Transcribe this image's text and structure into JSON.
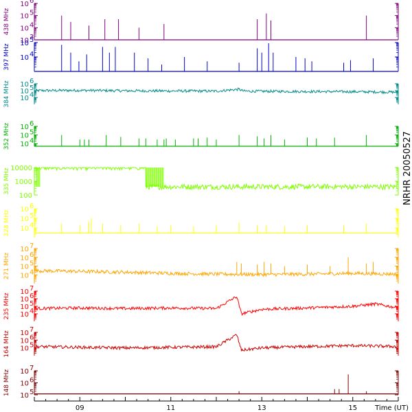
{
  "chart_data": {
    "type": "line",
    "title": "NRHR 20050527",
    "xlabel": "Time (UT)",
    "x_range_hours_ut": [
      8.0,
      16.0
    ],
    "x_ticks": [
      {
        "value": 9,
        "label": "09"
      },
      {
        "value": 11,
        "label": "11"
      },
      {
        "value": 13,
        "label": "13"
      },
      {
        "value": 15,
        "label": "15"
      }
    ],
    "panels": [
      {
        "name": "438 MHz",
        "color": "#800080",
        "log_scale": true,
        "ylim": [
          1000,
          1000000
        ],
        "y_ticks": [
          {
            "value": 1000,
            "label": "10",
            "exp": "3"
          },
          {
            "value": 10000,
            "label": "10",
            "exp": "4"
          },
          {
            "value": 100000,
            "label": "10",
            "exp": "5"
          },
          {
            "value": 1000000,
            "label": "10",
            "exp": "6"
          }
        ],
        "baseline": 1000,
        "spikes": [
          [
            8.6,
            100000
          ],
          [
            8.8,
            30000
          ],
          [
            9.2,
            15000
          ],
          [
            9.55,
            50000
          ],
          [
            9.85,
            50000
          ],
          [
            10.3,
            10000
          ],
          [
            10.85,
            20000
          ],
          [
            12.9,
            50000
          ],
          [
            13.1,
            150000
          ],
          [
            13.2,
            40000
          ],
          [
            15.3,
            100000
          ]
        ]
      },
      {
        "name": "397 MHz",
        "color": "#0000cc",
        "log_scale": true,
        "ylim": [
          1000,
          100000
        ],
        "y_ticks": [
          {
            "value": 10000,
            "label": "10",
            "exp": "4"
          },
          {
            "value": 100000,
            "label": "10",
            "exp": "5"
          }
        ],
        "baseline": 1000,
        "spikes": [
          [
            8.6,
            70000
          ],
          [
            8.8,
            20000
          ],
          [
            8.98,
            5000
          ],
          [
            9.15,
            15000
          ],
          [
            9.5,
            50000
          ],
          [
            9.65,
            20000
          ],
          [
            9.78,
            50000
          ],
          [
            10.2,
            20000
          ],
          [
            10.5,
            8000
          ],
          [
            10.8,
            3000
          ],
          [
            11.3,
            10000
          ],
          [
            11.8,
            5000
          ],
          [
            12.5,
            4000
          ],
          [
            12.9,
            40000
          ],
          [
            13.0,
            20000
          ],
          [
            13.15,
            90000
          ],
          [
            13.25,
            20000
          ],
          [
            13.75,
            10000
          ],
          [
            13.95,
            8000
          ],
          [
            14.1,
            5000
          ],
          [
            14.8,
            4000
          ],
          [
            14.95,
            6000
          ],
          [
            15.45,
            8000
          ]
        ]
      },
      {
        "name": "384 MHz",
        "color": "#008b8b",
        "log_scale": true,
        "ylim": [
          1000,
          1000000
        ],
        "y_ticks": [
          {
            "value": 10000,
            "label": "10",
            "exp": "4"
          },
          {
            "value": 100000,
            "label": "10",
            "exp": "5"
          },
          {
            "value": 1000000,
            "label": "10",
            "exp": "6"
          }
        ],
        "baseline_profile": [
          [
            8.0,
            100000
          ],
          [
            9.0,
            110000
          ],
          [
            10.0,
            95000
          ],
          [
            11.0,
            90000
          ],
          [
            12.0,
            85000
          ],
          [
            12.5,
            160000
          ],
          [
            12.6,
            85000
          ],
          [
            13.0,
            80000
          ],
          [
            14.0,
            75000
          ],
          [
            15.0,
            70000
          ],
          [
            16.0,
            60000
          ]
        ],
        "spikes": [
          [
            12.5,
            200000
          ]
        ]
      },
      {
        "name": "352 MHz",
        "color": "#00b000",
        "log_scale": true,
        "ylim": [
          5000,
          1000000
        ],
        "y_ticks": [
          {
            "value": 10000,
            "label": "10",
            "exp": "4"
          },
          {
            "value": 100000,
            "label": "10",
            "exp": "5"
          },
          {
            "value": 1000000,
            "label": "10",
            "exp": "6"
          }
        ],
        "baseline": 5000,
        "spikes": [
          [
            8.6,
            100000
          ],
          [
            9.0,
            30000
          ],
          [
            9.1,
            30000
          ],
          [
            9.2,
            30000
          ],
          [
            9.58,
            100000
          ],
          [
            9.9,
            60000
          ],
          [
            10.3,
            40000
          ],
          [
            10.45,
            40000
          ],
          [
            10.7,
            30000
          ],
          [
            10.85,
            30000
          ],
          [
            10.9,
            40000
          ],
          [
            11.1,
            30000
          ],
          [
            11.5,
            40000
          ],
          [
            11.6,
            40000
          ],
          [
            11.8,
            50000
          ],
          [
            12.0,
            30000
          ],
          [
            12.5,
            100000
          ],
          [
            12.9,
            70000
          ],
          [
            13.05,
            40000
          ],
          [
            13.2,
            100000
          ],
          [
            13.5,
            30000
          ],
          [
            14.0,
            50000
          ],
          [
            14.2,
            40000
          ],
          [
            14.6,
            50000
          ],
          [
            15.3,
            100000
          ]
        ]
      },
      {
        "name": "335 MHz",
        "color": "#7fff00",
        "log_scale": true,
        "ylim": [
          100,
          10000
        ],
        "y_ticks": [
          {
            "value": 100,
            "label": "100",
            "exp": ""
          },
          {
            "value": 1000,
            "label": "1000",
            "exp": ""
          },
          {
            "value": 10000,
            "label": "10000",
            "exp": ""
          }
        ],
        "baseline_profile": [
          [
            8.0,
            10000
          ],
          [
            10.45,
            10000
          ],
          [
            10.46,
            400
          ],
          [
            16.0,
            400
          ]
        ],
        "dense_bands": [
          [
            8.05,
            8.12
          ],
          [
            10.45,
            10.85
          ]
        ],
        "dense_low": 400,
        "dense_high": 10000
      },
      {
        "name": "328 MHz",
        "color": "#ffff00",
        "log_scale": true,
        "ylim": [
          1000,
          1000000
        ],
        "y_ticks": [
          {
            "value": 10000,
            "label": "10",
            "exp": "4"
          },
          {
            "value": 100000,
            "label": "10",
            "exp": "5"
          },
          {
            "value": 1000000,
            "label": "10",
            "exp": "6"
          }
        ],
        "baseline": 3000,
        "spikes": [
          [
            8.6,
            30000
          ],
          [
            9.0,
            20000
          ],
          [
            9.2,
            50000
          ],
          [
            9.25,
            100000
          ],
          [
            9.5,
            30000
          ],
          [
            9.9,
            20000
          ],
          [
            10.3,
            30000
          ],
          [
            10.7,
            15000
          ],
          [
            11.0,
            20000
          ],
          [
            11.5,
            15000
          ],
          [
            12.0,
            20000
          ],
          [
            12.5,
            40000
          ],
          [
            12.9,
            20000
          ],
          [
            13.1,
            20000
          ],
          [
            13.5,
            15000
          ],
          [
            14.0,
            20000
          ],
          [
            14.8,
            20000
          ],
          [
            15.3,
            30000
          ]
        ]
      },
      {
        "name": "271 MHz",
        "color": "#ffa500",
        "log_scale": true,
        "ylim": [
          1000,
          10000000
        ],
        "y_ticks": [
          {
            "value": 10000,
            "label": "10",
            "exp": "4"
          },
          {
            "value": 100000,
            "label": "10",
            "exp": "5"
          },
          {
            "value": 1000000,
            "label": "10",
            "exp": "6"
          },
          {
            "value": 10000000,
            "label": "10",
            "exp": "7"
          }
        ],
        "baseline_profile": [
          [
            8.0,
            30000
          ],
          [
            9.0,
            25000
          ],
          [
            10.0,
            20000
          ],
          [
            11.0,
            15000
          ],
          [
            12.0,
            12000
          ],
          [
            13.0,
            11000
          ],
          [
            14.0,
            12000
          ],
          [
            15.0,
            15000
          ],
          [
            16.0,
            12000
          ]
        ],
        "spikes": [
          [
            12.45,
            300000
          ],
          [
            12.55,
            200000
          ],
          [
            12.9,
            150000
          ],
          [
            13.05,
            300000
          ],
          [
            13.2,
            200000
          ],
          [
            13.5,
            100000
          ],
          [
            14.0,
            150000
          ],
          [
            14.5,
            100000
          ],
          [
            14.9,
            1000000
          ],
          [
            15.3,
            200000
          ],
          [
            15.45,
            300000
          ]
        ]
      },
      {
        "name": "235 MHz",
        "color": "#ff0000",
        "log_scale": true,
        "ylim": [
          1000,
          10000000
        ],
        "y_ticks": [
          {
            "value": 10000,
            "label": "10",
            "exp": "4"
          },
          {
            "value": 100000,
            "label": "10",
            "exp": "5"
          },
          {
            "value": 1000000,
            "label": "10",
            "exp": "6"
          },
          {
            "value": 10000000,
            "label": "10",
            "exp": "7"
          }
        ],
        "baseline_profile": [
          [
            8.0,
            50000
          ],
          [
            9.0,
            60000
          ],
          [
            10.0,
            50000
          ],
          [
            11.0,
            60000
          ],
          [
            12.0,
            50000
          ],
          [
            12.45,
            2000000
          ],
          [
            12.55,
            10000
          ],
          [
            13.0,
            40000
          ],
          [
            14.0,
            60000
          ],
          [
            15.0,
            100000
          ],
          [
            15.5,
            200000
          ],
          [
            16.0,
            60000
          ]
        ]
      },
      {
        "name": "164 MHz",
        "color": "#cc0000",
        "log_scale": true,
        "ylim": [
          10000,
          10000000
        ],
        "y_ticks": [
          {
            "value": 100000,
            "label": "10",
            "exp": "5"
          },
          {
            "value": 1000000,
            "label": "10",
            "exp": "6"
          },
          {
            "value": 10000000,
            "label": "10",
            "exp": "7"
          }
        ],
        "baseline_profile": [
          [
            8.0,
            150000
          ],
          [
            9.0,
            120000
          ],
          [
            10.0,
            100000
          ],
          [
            11.0,
            120000
          ],
          [
            12.0,
            140000
          ],
          [
            12.45,
            5000000
          ],
          [
            12.55,
            50000
          ],
          [
            13.0,
            100000
          ],
          [
            14.0,
            150000
          ],
          [
            15.0,
            200000
          ],
          [
            16.0,
            150000
          ]
        ]
      },
      {
        "name": "148 MHz",
        "color": "#800000",
        "log_scale": true,
        "ylim": [
          100000,
          10000000
        ],
        "y_ticks": [
          {
            "value": 100000,
            "label": "10",
            "exp": "5"
          },
          {
            "value": 1000000,
            "label": "10",
            "exp": "6"
          },
          {
            "value": 10000000,
            "label": "10",
            "exp": "7"
          }
        ],
        "baseline": 120000,
        "spikes": [
          [
            12.5,
            200000
          ],
          [
            14.6,
            300000
          ],
          [
            14.7,
            300000
          ],
          [
            14.9,
            5000000
          ],
          [
            15.3,
            200000
          ]
        ]
      }
    ]
  }
}
